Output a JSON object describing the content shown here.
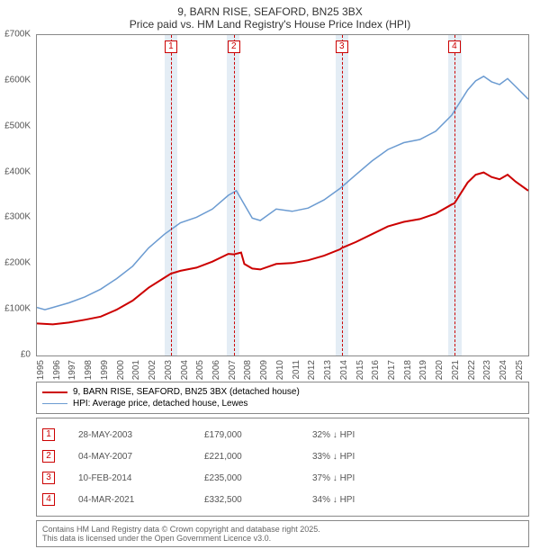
{
  "header": {
    "title": "9, BARN RISE, SEAFORD, BN25 3BX",
    "subtitle": "Price paid vs. HM Land Registry's House Price Index (HPI)"
  },
  "chart": {
    "ylim": [
      0,
      700000
    ],
    "ytick_step": 100000,
    "yticks": [
      "£0",
      "£100K",
      "£200K",
      "£300K",
      "£400K",
      "£500K",
      "£600K",
      "£700K"
    ],
    "x_start": 1995,
    "x_end": 2025.8,
    "xticks": [
      1995,
      1996,
      1997,
      1998,
      1999,
      2000,
      2001,
      2002,
      2003,
      2004,
      2005,
      2006,
      2007,
      2008,
      2009,
      2010,
      2011,
      2012,
      2013,
      2014,
      2015,
      2016,
      2017,
      2018,
      2019,
      2020,
      2021,
      2022,
      2023,
      2024,
      2025
    ],
    "markers": [
      {
        "num": "1",
        "year": 2003.4
      },
      {
        "num": "2",
        "year": 2007.34
      },
      {
        "num": "3",
        "year": 2014.11
      },
      {
        "num": "4",
        "year": 2021.17
      }
    ],
    "bands": [
      {
        "from": 2003.0,
        "to": 2003.8
      },
      {
        "from": 2006.9,
        "to": 2007.7
      },
      {
        "from": 2013.7,
        "to": 2014.5
      },
      {
        "from": 2020.8,
        "to": 2021.6
      }
    ],
    "series": [
      {
        "name": "price_paid",
        "color": "#cc0000",
        "width": 2,
        "points": [
          [
            1995,
            70000
          ],
          [
            1996,
            68000
          ],
          [
            1997,
            72000
          ],
          [
            1998,
            78000
          ],
          [
            1999,
            85000
          ],
          [
            2000,
            100000
          ],
          [
            2001,
            120000
          ],
          [
            2002,
            148000
          ],
          [
            2003,
            170000
          ],
          [
            2003.4,
            179000
          ],
          [
            2004,
            185000
          ],
          [
            2005,
            192000
          ],
          [
            2006,
            205000
          ],
          [
            2007,
            222000
          ],
          [
            2007.34,
            221000
          ],
          [
            2007.8,
            225000
          ],
          [
            2008,
            200000
          ],
          [
            2008.5,
            190000
          ],
          [
            2009,
            188000
          ],
          [
            2010,
            200000
          ],
          [
            2011,
            202000
          ],
          [
            2012,
            208000
          ],
          [
            2013,
            218000
          ],
          [
            2014,
            232000
          ],
          [
            2014.11,
            235000
          ],
          [
            2015,
            248000
          ],
          [
            2016,
            265000
          ],
          [
            2017,
            282000
          ],
          [
            2018,
            292000
          ],
          [
            2019,
            298000
          ],
          [
            2020,
            310000
          ],
          [
            2021,
            330000
          ],
          [
            2021.17,
            332500
          ],
          [
            2022,
            378000
          ],
          [
            2022.5,
            395000
          ],
          [
            2023,
            400000
          ],
          [
            2023.5,
            390000
          ],
          [
            2024,
            385000
          ],
          [
            2024.5,
            395000
          ],
          [
            2025,
            380000
          ],
          [
            2025.8,
            360000
          ]
        ]
      },
      {
        "name": "hpi",
        "color": "#6b9bd1",
        "width": 1.5,
        "points": [
          [
            1995,
            105000
          ],
          [
            1995.5,
            100000
          ],
          [
            1996,
            105000
          ],
          [
            1997,
            115000
          ],
          [
            1998,
            128000
          ],
          [
            1999,
            145000
          ],
          [
            2000,
            168000
          ],
          [
            2001,
            195000
          ],
          [
            2002,
            235000
          ],
          [
            2003,
            265000
          ],
          [
            2004,
            290000
          ],
          [
            2005,
            302000
          ],
          [
            2006,
            320000
          ],
          [
            2007,
            350000
          ],
          [
            2007.5,
            360000
          ],
          [
            2008,
            330000
          ],
          [
            2008.5,
            300000
          ],
          [
            2009,
            295000
          ],
          [
            2010,
            320000
          ],
          [
            2011,
            315000
          ],
          [
            2012,
            322000
          ],
          [
            2013,
            340000
          ],
          [
            2014,
            365000
          ],
          [
            2015,
            395000
          ],
          [
            2016,
            425000
          ],
          [
            2017,
            450000
          ],
          [
            2018,
            465000
          ],
          [
            2019,
            472000
          ],
          [
            2020,
            490000
          ],
          [
            2021,
            525000
          ],
          [
            2022,
            580000
          ],
          [
            2022.5,
            600000
          ],
          [
            2023,
            610000
          ],
          [
            2023.5,
            598000
          ],
          [
            2024,
            592000
          ],
          [
            2024.5,
            605000
          ],
          [
            2025,
            588000
          ],
          [
            2025.8,
            560000
          ]
        ]
      }
    ]
  },
  "legend": {
    "items": [
      {
        "label": "9, BARN RISE, SEAFORD, BN25 3BX (detached house)",
        "color": "#cc0000",
        "width": 2
      },
      {
        "label": "HPI: Average price, detached house, Lewes",
        "color": "#6b9bd1",
        "width": 1.5
      }
    ]
  },
  "sales": [
    {
      "num": "1",
      "date": "28-MAY-2003",
      "price": "£179,000",
      "diff": "32% ↓ HPI"
    },
    {
      "num": "2",
      "date": "04-MAY-2007",
      "price": "£221,000",
      "diff": "33% ↓ HPI"
    },
    {
      "num": "3",
      "date": "10-FEB-2014",
      "price": "£235,000",
      "diff": "37% ↓ HPI"
    },
    {
      "num": "4",
      "date": "04-MAR-2021",
      "price": "£332,500",
      "diff": "34% ↓ HPI"
    }
  ],
  "footer": {
    "line1": "Contains HM Land Registry data © Crown copyright and database right 2025.",
    "line2": "This data is licensed under the Open Government Licence v3.0."
  }
}
